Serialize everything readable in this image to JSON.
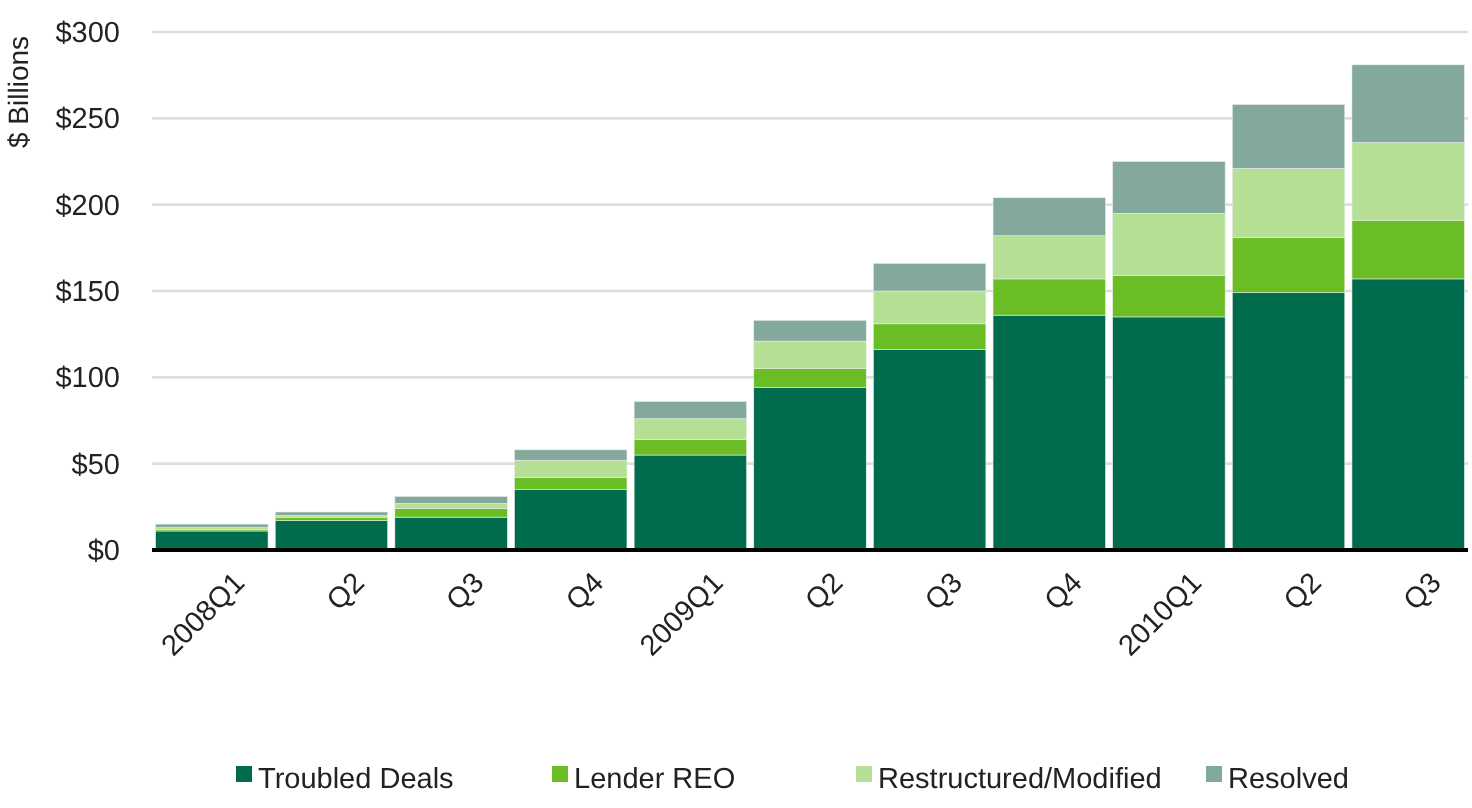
{
  "chart_data": {
    "type": "bar",
    "stacked": true,
    "ylabel": "$ Billions",
    "categories": [
      "2008Q1",
      "Q2",
      "Q3",
      "Q4",
      "2009Q1",
      "Q2",
      "Q3",
      "Q4",
      "2010Q1",
      "Q2",
      "Q3"
    ],
    "series": [
      {
        "name": "Troubled Deals",
        "color": "#006b4d",
        "values": [
          11,
          17,
          19,
          35,
          55,
          94,
          116,
          136,
          135,
          149,
          157
        ]
      },
      {
        "name": "Lender REO",
        "color": "#6abd25",
        "values": [
          1,
          2,
          5,
          7,
          9,
          11,
          15,
          21,
          24,
          32,
          34
        ]
      },
      {
        "name": "Restructured/Modified",
        "color": "#b5df95",
        "values": [
          1,
          1,
          3,
          10,
          12,
          16,
          19,
          25,
          36,
          40,
          45
        ]
      },
      {
        "name": "Resolved",
        "color": "#82a99b",
        "values": [
          2,
          2,
          4,
          6,
          10,
          12,
          16,
          22,
          30,
          37,
          45
        ]
      }
    ],
    "ylim": [
      0,
      300
    ],
    "yticks": [
      {
        "value": 0,
        "label": "$0"
      },
      {
        "value": 50,
        "label": "$50"
      },
      {
        "value": 100,
        "label": "$100"
      },
      {
        "value": 150,
        "label": "$150"
      },
      {
        "value": 200,
        "label": "$200"
      },
      {
        "value": 250,
        "label": "$250"
      },
      {
        "value": 300,
        "label": "$300"
      }
    ],
    "grid": "y",
    "legend": "bottom"
  }
}
